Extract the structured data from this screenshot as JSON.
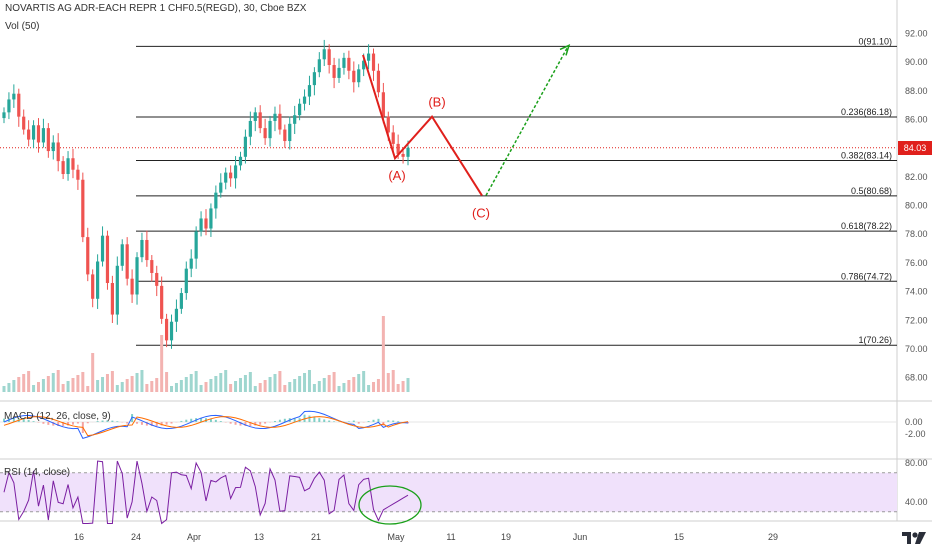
{
  "header": {
    "title": "NOVARTIS AG ADR-EACH REPR 1 CHF0.5(REGD), 30, Cboe BZX",
    "volume_label": "Vol (50)"
  },
  "macd": {
    "label": "MACD (12, 26, close, 9)",
    "ticks": [
      "0.00",
      "-2.00"
    ]
  },
  "rsi": {
    "label": "RSI (14, close)",
    "ticks": [
      "80.00",
      "40.00"
    ]
  },
  "last_price": "84.03",
  "colors": {
    "up": "#26a69a",
    "down": "#ef5350",
    "wave": "#e0201c",
    "projection": "#1aa01a",
    "rsi_line": "#7b1fa2",
    "rsi_band": "#f0e1fb"
  },
  "chart_data": {
    "type": "candlestick",
    "symbol": "NOVARTIS AG ADR-EACH REPR 1 CHF0.5(REGD)",
    "interval": "30",
    "exchange": "Cboe BZX",
    "x_tick_labels": [
      "16",
      "24",
      "Apr",
      "13",
      "21",
      "May",
      "11",
      "19",
      "Jun",
      "15",
      "29"
    ],
    "y_ticks": [
      "92.00",
      "90.00",
      "88.00",
      "86.00",
      "84.00",
      "82.00",
      "80.00",
      "78.00",
      "76.00",
      "74.00",
      "72.00",
      "70.00",
      "68.00"
    ],
    "ylim": [
      67,
      92.8
    ],
    "last_price": 84.03,
    "fibonacci": [
      {
        "label": "0(91.10)",
        "value": 91.1
      },
      {
        "label": "0.236(86.18)",
        "value": 86.18
      },
      {
        "label": "0.382(83.14)",
        "value": 83.14
      },
      {
        "label": "0.5(80.68)",
        "value": 80.68
      },
      {
        "label": "0.618(78.22)",
        "value": 78.22
      },
      {
        "label": "0.786(74.72)",
        "value": 74.72
      },
      {
        "label": "1(70.26)",
        "value": 70.26
      }
    ],
    "waves": [
      {
        "label": "(A)",
        "value": 83.3
      },
      {
        "label": "(B)",
        "value": 86.2
      },
      {
        "label": "(C)",
        "value": 80.7
      }
    ],
    "projection_target": 91.1,
    "approx_closes": [
      86.5,
      87.4,
      87.8,
      86.2,
      85.3,
      84.6,
      85.6,
      84.4,
      85.4,
      83.8,
      84.4,
      83.1,
      82.2,
      83.3,
      82.5,
      81.8,
      77.8,
      75.2,
      73.5,
      76.1,
      77.9,
      74.6,
      72.4,
      75.8,
      77.3,
      74.9,
      73.8,
      76.4,
      77.6,
      76.2,
      75.3,
      74.4,
      72.1,
      70.6,
      71.9,
      72.8,
      73.9,
      75.6,
      76.3,
      78.2,
      79.1,
      78.4,
      79.8,
      80.9,
      81.6,
      82.3,
      81.9,
      82.8,
      83.4,
      84.8,
      85.9,
      86.5,
      85.4,
      84.7,
      85.9,
      86.4,
      85.3,
      84.5,
      85.7,
      86.3,
      87.1,
      87.6,
      88.4,
      89.3,
      90.2,
      90.9,
      89.8,
      88.9,
      89.6,
      90.3,
      89.4,
      88.6,
      89.5,
      90.1,
      90.6,
      89.4,
      87.9,
      86.2,
      85.1,
      84.3,
      83.6,
      83.4,
      84.03
    ]
  }
}
